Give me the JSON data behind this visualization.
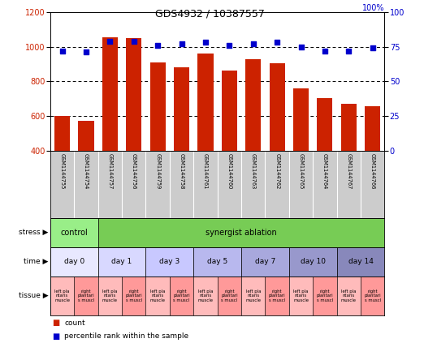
{
  "title": "GDS4932 / 10387557",
  "samples": [
    "GSM1144755",
    "GSM1144754",
    "GSM1144757",
    "GSM1144756",
    "GSM1144759",
    "GSM1144758",
    "GSM1144761",
    "GSM1144760",
    "GSM1144763",
    "GSM1144762",
    "GSM1144765",
    "GSM1144764",
    "GSM1144767",
    "GSM1144766"
  ],
  "counts": [
    600,
    572,
    1055,
    1050,
    910,
    880,
    960,
    865,
    930,
    905,
    760,
    703,
    670,
    657
  ],
  "percentiles": [
    72,
    71,
    79,
    79,
    76,
    77,
    78,
    76,
    77,
    78,
    75,
    72,
    72,
    74
  ],
  "ylim_left": [
    400,
    1200
  ],
  "ylim_right": [
    0,
    100
  ],
  "yticks_left": [
    400,
    600,
    800,
    1000,
    1200
  ],
  "yticks_right": [
    0,
    25,
    50,
    75,
    100
  ],
  "bar_color": "#cc2200",
  "dot_color": "#0000cc",
  "label_color_left": "#cc2200",
  "label_color_right": "#0000cc",
  "stress_control_color": "#99ee88",
  "stress_ablation_color": "#77cc55",
  "time_colors": [
    "#e8e8ff",
    "#d8d8ff",
    "#c8c8ff",
    "#b8b8ee",
    "#a8a8dd",
    "#9898cc",
    "#8888bb"
  ],
  "tissue_left_color": "#ffbbbb",
  "tissue_right_color": "#ff9999",
  "legend_count_color": "#cc2200",
  "legend_pct_color": "#0000cc",
  "sample_bg_color": "#cccccc"
}
